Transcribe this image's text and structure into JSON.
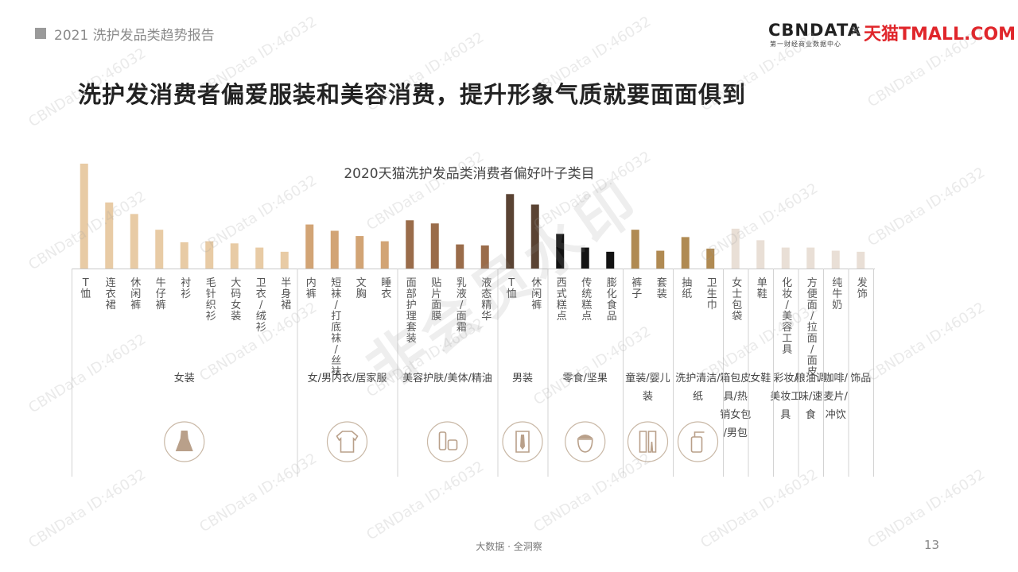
{
  "header": {
    "report_title": "2021 洗护发品类趋势报告",
    "logo": {
      "brand": "CBNDATA",
      "brand_sub": "第一财经商业数据中心",
      "times": "×",
      "partner": "天猫TMALL.COM"
    }
  },
  "title": "洗护发消费者偏爱服装和美容消费，提升形象气质就要面面俱到",
  "watermarks": {
    "id": "CBNData ID:46032",
    "big": "非会员水印"
  },
  "footer": {
    "tagline": "大数据 · 全洞察",
    "page": "13"
  },
  "chart_data": {
    "type": "bar",
    "title": "2020天猫洗护发品类消费者偏好叶子类目",
    "groups": [
      {
        "name": "女装",
        "icon": "dress-icon",
        "color": "#e8cba5",
        "items": [
          {
            "label": "T恤",
            "value": 100
          },
          {
            "label": "连衣裙",
            "value": 63
          },
          {
            "label": "休闲裤",
            "value": 52
          },
          {
            "label": "牛仔裤",
            "value": 37
          },
          {
            "label": "衬衫",
            "value": 25
          },
          {
            "label": "毛针织衫",
            "value": 26
          },
          {
            "label": "大码女装",
            "value": 24
          },
          {
            "label": "卫衣/绒衫",
            "value": 20
          },
          {
            "label": "半身裙",
            "value": 16
          }
        ]
      },
      {
        "name": "女/男内衣/居家服",
        "icon": "shirt-icon",
        "color": "#d2a475",
        "items": [
          {
            "label": "内裤",
            "value": 42
          },
          {
            "label": "短袜/打底袜/丝袜",
            "value": 36
          },
          {
            "label": "文胸",
            "value": 31
          },
          {
            "label": "睡衣",
            "value": 26
          }
        ]
      },
      {
        "name": "美容护肤/美体/精油",
        "icon": "cream-icon",
        "color": "#9a6c4a",
        "items": [
          {
            "label": "面部护理套装",
            "value": 46
          },
          {
            "label": "贴片面膜",
            "value": 43
          },
          {
            "label": "乳液/面霜",
            "value": 23
          },
          {
            "label": "液态精华",
            "value": 22
          }
        ]
      },
      {
        "name": "男装",
        "icon": "tie-shirt-icon",
        "color": "#5a4333",
        "items": [
          {
            "label": "T恤",
            "value": 71
          },
          {
            "label": "休闲裤",
            "value": 61
          }
        ]
      },
      {
        "name": "零食/坚果",
        "icon": "acorn-icon",
        "color": "#121212",
        "items": [
          {
            "label": "西式糕点",
            "value": 33
          },
          {
            "label": "传统糕点",
            "value": 20
          },
          {
            "label": "膨化食品",
            "value": 16
          }
        ]
      },
      {
        "name": "童装/婴儿装",
        "icon": "kids-clothes-icon",
        "color": "#b08a52",
        "items": [
          {
            "label": "裤子",
            "value": 37
          },
          {
            "label": "套装",
            "value": 17
          }
        ]
      },
      {
        "name": "洗护清洁/纸",
        "icon": "bottle-icon",
        "color": "#b08a52",
        "items": [
          {
            "label": "抽纸",
            "value": 30
          },
          {
            "label": "卫生巾",
            "value": 19
          }
        ]
      },
      {
        "name": "箱包皮具/热销女包/男包",
        "icon": "",
        "color": "#e9dfd6",
        "items": [
          {
            "label": "女士包袋",
            "value": 38
          }
        ]
      },
      {
        "name": "女鞋",
        "icon": "",
        "color": "#e9dfd6",
        "items": [
          {
            "label": "单鞋",
            "value": 27
          }
        ]
      },
      {
        "name": "彩妆/美妆工具",
        "icon": "",
        "color": "#e9dfd6",
        "items": [
          {
            "label": "化妆/美容工具",
            "value": 20
          }
        ]
      },
      {
        "name": "粮油调味/速食",
        "icon": "",
        "color": "#e9dfd6",
        "items": [
          {
            "label": "方便面/拉面/面皮",
            "value": 20
          }
        ]
      },
      {
        "name": "咖啡/麦片/冲饮",
        "icon": "",
        "color": "#e9dfd6",
        "items": [
          {
            "label": "纯牛奶",
            "value": 17
          }
        ]
      },
      {
        "name": "饰品",
        "icon": "",
        "color": "#e9dfd6",
        "items": [
          {
            "label": "发饰",
            "value": 16
          }
        ]
      }
    ]
  }
}
